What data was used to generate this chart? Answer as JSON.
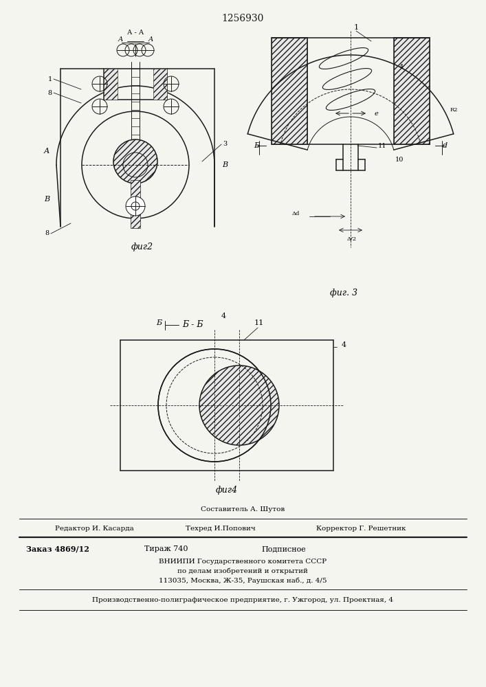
{
  "patent_number": "1256930",
  "bg_color": "#f5f5f0",
  "line_color": "#1a1a1a",
  "fig_width": 7.07,
  "fig_height": 10.0,
  "footer": {
    "sestavitel_label": "Составитель А. Шутов",
    "redaktor_label": "Редактор И. Касарда",
    "tehred_label": "Техред И.Попович",
    "korrektor_label": "Корректор Г. Решетник",
    "zakaz_label": "Заказ 4869/12",
    "tirazh_label": "Тираж 740",
    "podpisnoe_label": "Подписное",
    "vniiipi_line1": "ВНИИПИ Государственного комитета СССР",
    "vniiipi_line2": "по делам изобретений и открытий",
    "vniiipi_line3": "113035, Москва, Ж-35, Раушская наб., д. 4/5",
    "production_line": "Производственно-полиграфическое предприятие, г. Ужгород, ул. Проектная, 4"
  }
}
